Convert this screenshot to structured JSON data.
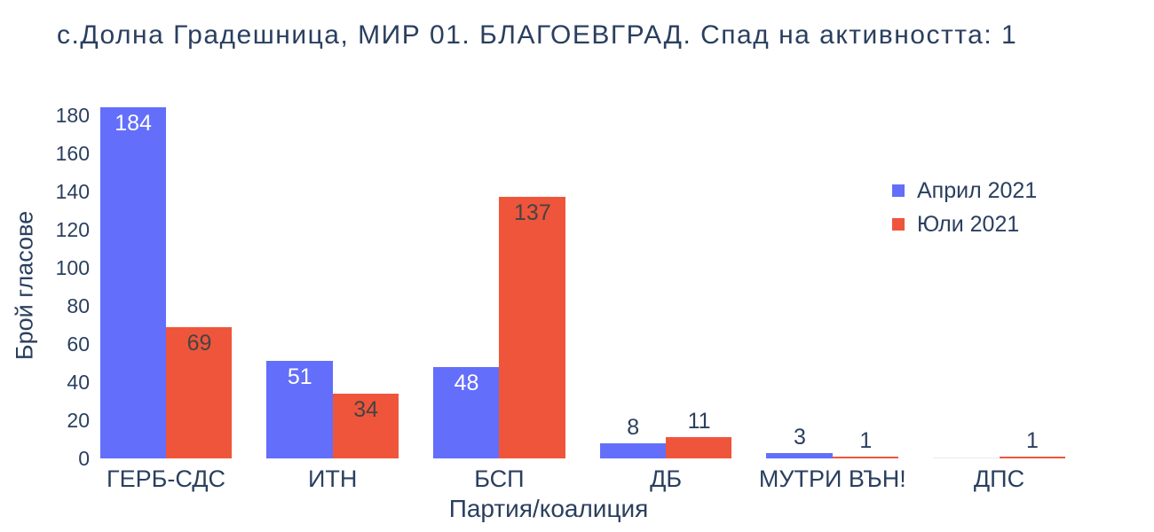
{
  "title": "с.Долна Градешница, МИР 01. БЛАГОЕВГРАД. Спад на активността: 1",
  "chart_data": {
    "type": "bar",
    "title": "с.Долна Градешница, МИР 01. БЛАГОЕВГРАД. Спад на активността: 1",
    "xlabel": "Партия/коалиция",
    "ylabel": "Брой гласове",
    "categories": [
      "ГЕРБ-СДС",
      "ИТН",
      "БСП",
      "ДБ",
      "МУТРИ ВЪН!",
      "ДПС"
    ],
    "series": [
      {
        "name": "Април 2021",
        "color": "#636efa",
        "inside_label_color": "#ffffff",
        "values": [
          184,
          51,
          48,
          8,
          3,
          0
        ]
      },
      {
        "name": "Юли 2021",
        "color": "#ef553b",
        "inside_label_color": "#444444",
        "values": [
          69,
          34,
          137,
          11,
          1,
          1
        ]
      }
    ],
    "yticks": [
      0,
      20,
      40,
      60,
      80,
      100,
      120,
      140,
      160,
      180
    ],
    "ylim": [
      0,
      184
    ],
    "grid": false,
    "legend_position": "right",
    "bar_labels": true
  },
  "colors": {
    "text": "#2a3f5f",
    "april_bar": "#636efa",
    "july_bar": "#ef553b",
    "outside_label": "#2a3f5f",
    "zero_bar": "#e8e8e8",
    "background": "#ffffff"
  }
}
